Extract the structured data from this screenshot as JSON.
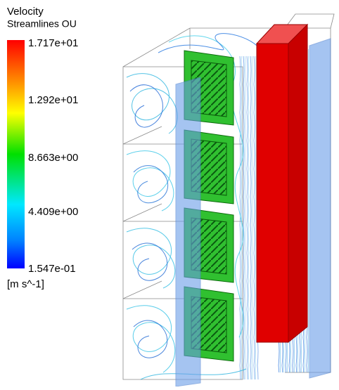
{
  "legend": {
    "title": "Velocity",
    "subtitle": "Streamlines OU",
    "ticks": [
      "1.717e+01",
      "1.292e+01",
      "8.663e+00",
      "4.409e+00",
      "1.547e-01"
    ],
    "unit": "[m s^-1]"
  }
}
